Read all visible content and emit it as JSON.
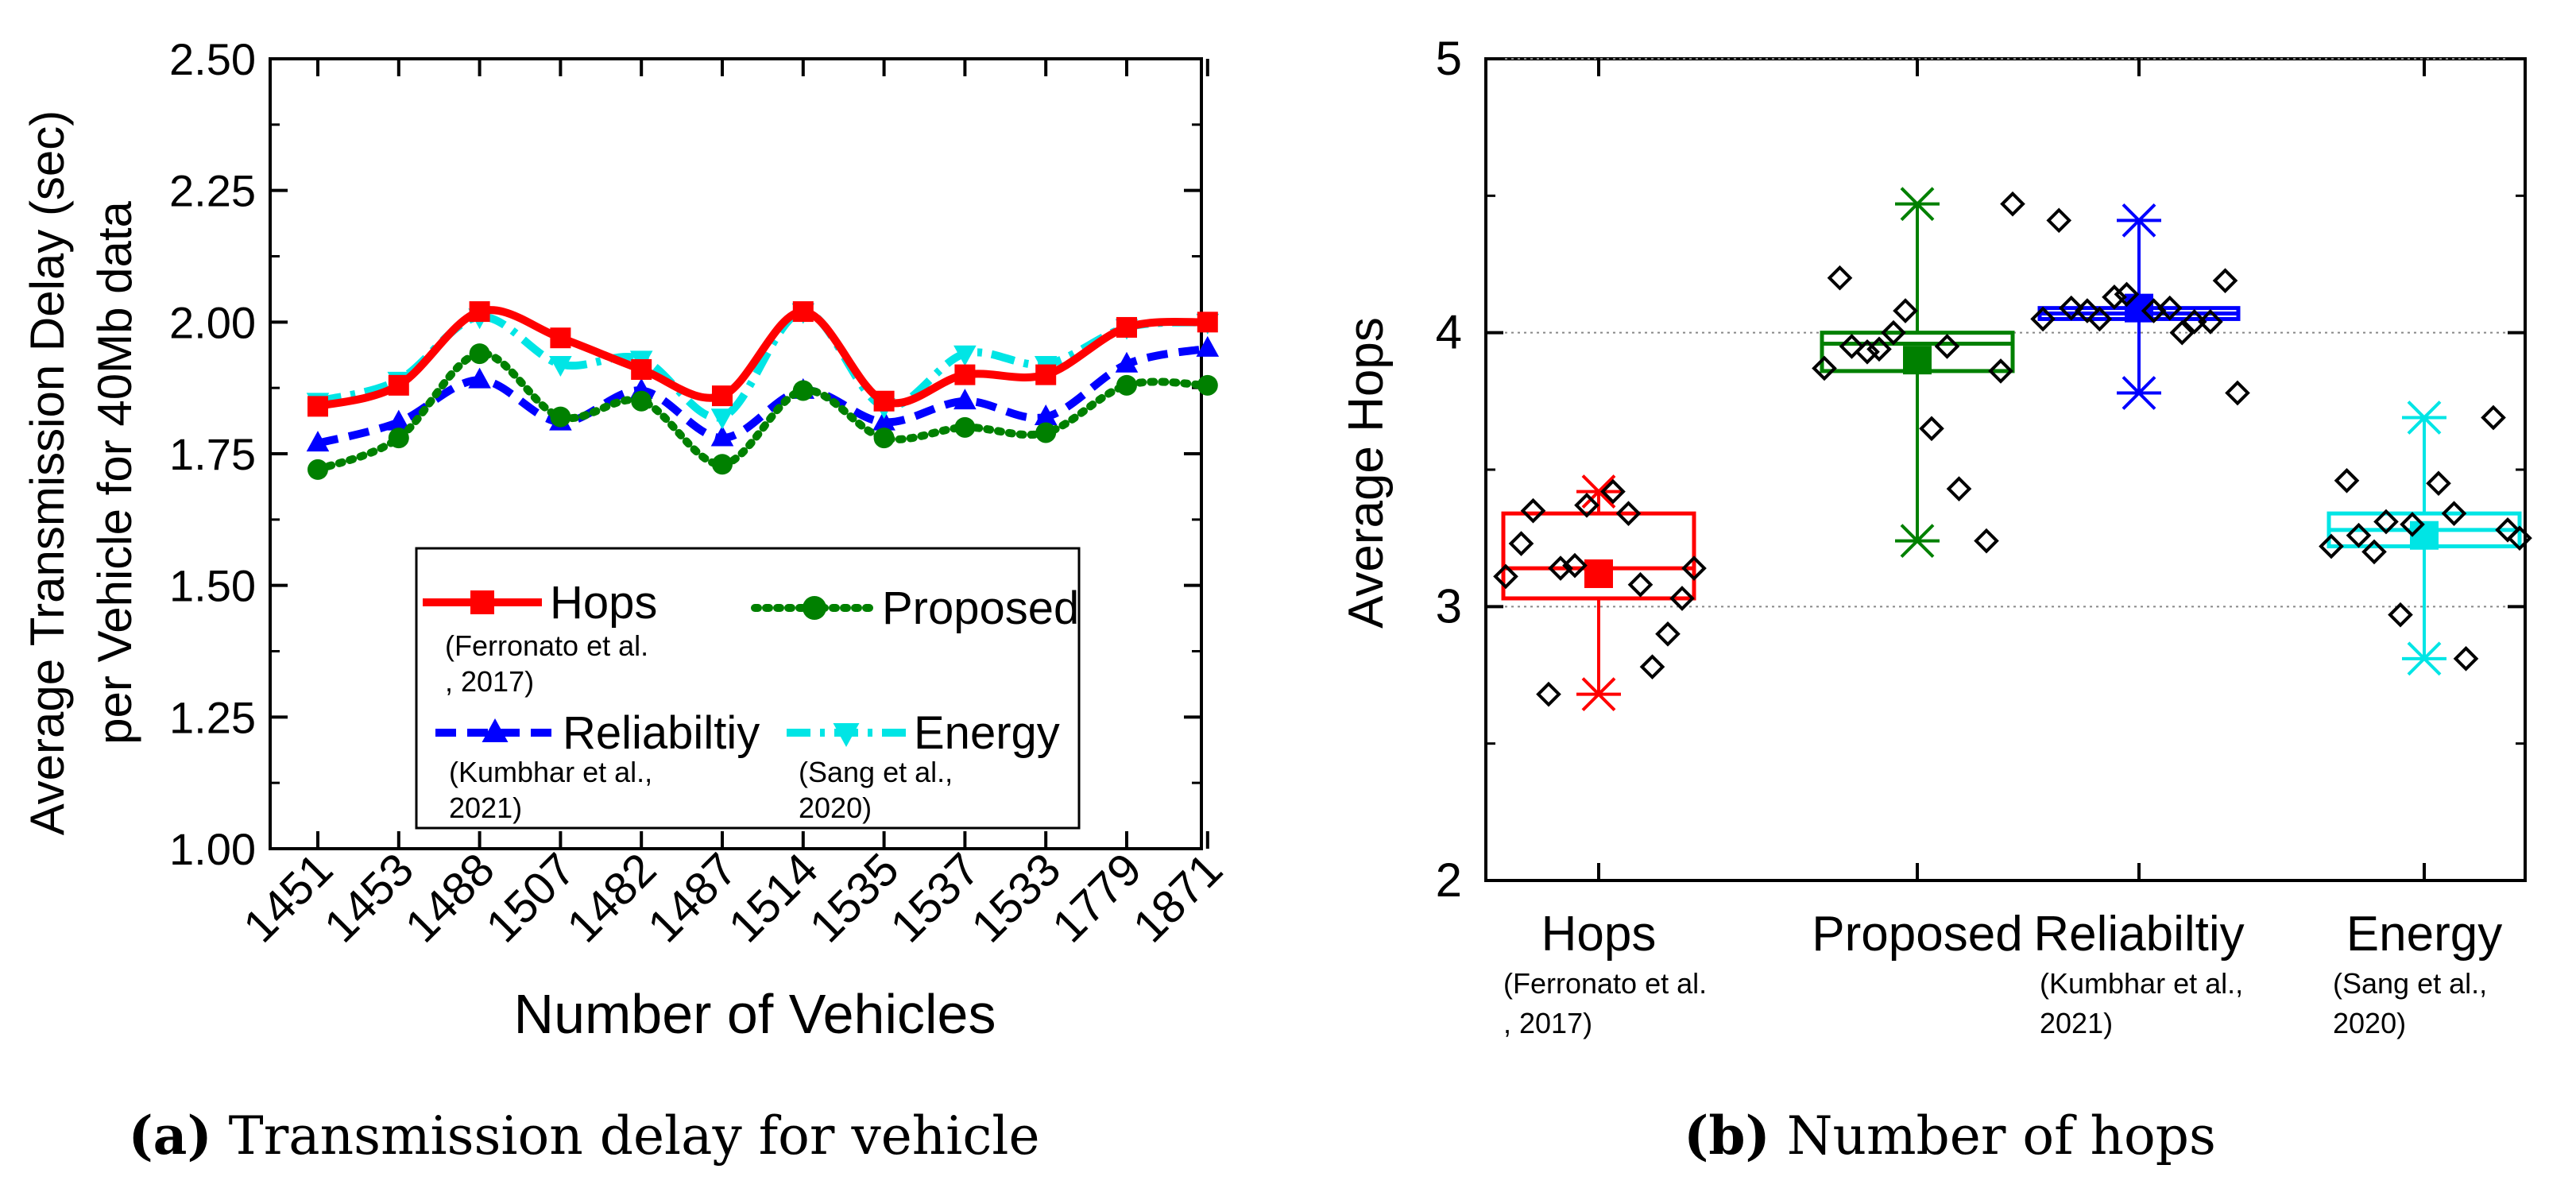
{
  "chart_data": [
    {
      "type": "line",
      "panel": "a",
      "caption_bold": "(a)",
      "caption_text": " Transmission delay for vehicle",
      "xlabel": "Number of Vehicles",
      "ylabel_line1": "Average Transmission Delay (sec)",
      "ylabel_line2": "per Vehicle for 40Mb data",
      "ylim": [
        1.0,
        2.5
      ],
      "yticks": [
        "1.00",
        "1.25",
        "1.50",
        "1.75",
        "2.00",
        "2.25",
        "2.50"
      ],
      "categories": [
        "1451",
        "1453",
        "1488",
        "1507",
        "1482",
        "1487",
        "1514",
        "1535",
        "1537",
        "1533",
        "1779",
        "1871"
      ],
      "series": [
        {
          "name": "Hops",
          "ref_line1": "(Ferronato et al.",
          "ref_line2": ", 2017)",
          "color": "#ff0000",
          "marker": "square",
          "dash": "solid",
          "values": [
            1.84,
            1.88,
            2.02,
            1.97,
            1.91,
            1.86,
            2.02,
            1.85,
            1.9,
            1.9,
            1.99,
            2.0
          ]
        },
        {
          "name": "Proposed",
          "ref_line1": "",
          "ref_line2": "",
          "color": "#008000",
          "marker": "circle",
          "dash": "dot",
          "values": [
            1.72,
            1.78,
            1.94,
            1.82,
            1.85,
            1.73,
            1.87,
            1.78,
            1.8,
            1.79,
            1.88,
            1.88
          ]
        },
        {
          "name": "Reliabiltiy",
          "ref_line1": "(Kumbhar et al.,",
          "ref_line2": "2021)",
          "color": "#0000ff",
          "marker": "triangle-up",
          "dash": "dash",
          "values": [
            1.77,
            1.81,
            1.89,
            1.81,
            1.87,
            1.78,
            1.87,
            1.81,
            1.85,
            1.82,
            1.92,
            1.95
          ]
        },
        {
          "name": "Energy",
          "ref_line1": "(Sang et al.,",
          "ref_line2": "2020)",
          "color": "#00e5e5",
          "marker": "triangle-down",
          "dash": "dashdot",
          "values": [
            1.85,
            1.89,
            2.01,
            1.92,
            1.93,
            1.82,
            2.02,
            1.84,
            1.94,
            1.92,
            1.99,
            2.0
          ]
        }
      ]
    },
    {
      "type": "box",
      "panel": "b",
      "caption_bold": "(b)",
      "caption_text": " Number of hops",
      "ylabel": "Average Hops",
      "ylim": [
        2,
        5
      ],
      "yticks": [
        "2",
        "3",
        "4",
        "5"
      ],
      "grid": true,
      "groups": [
        {
          "name": "Hops",
          "ref_line1": "(Ferronato et al.",
          "ref_line2": ", 2017)",
          "color": "#ff0000",
          "q1": 3.03,
          "median": 3.14,
          "q3": 3.34,
          "mean": 3.12,
          "whisker_low": 2.68,
          "whisker_high": 3.42,
          "min": 2.68,
          "max": 3.42,
          "points": [
            3.11,
            3.35,
            3.14,
            3.37,
            3.42,
            3.08,
            2.9,
            3.14,
            3.23,
            3.15,
            3.34,
            3.03,
            2.68,
            2.78
          ]
        },
        {
          "name": "Proposed",
          "ref_line1": "",
          "ref_line2": "",
          "color": "#008000",
          "q1": 3.86,
          "median": 3.96,
          "q3": 4.0,
          "mean": 3.9,
          "whisker_low": 3.24,
          "whisker_high": 4.47,
          "min": 3.24,
          "max": 4.47,
          "points": [
            3.87,
            3.95,
            3.94,
            4.08,
            3.65,
            3.43,
            3.24,
            4.47,
            4.2,
            4.0,
            3.95,
            3.86,
            3.93
          ]
        },
        {
          "name": "Reliabiltiy",
          "ref_line1": "(Kumbhar et al.,",
          "ref_line2": "2021)",
          "color": "#0000ff",
          "q1": 4.05,
          "median": 4.07,
          "q3": 4.09,
          "mean": 4.09,
          "whisker_low": 3.78,
          "whisker_high": 4.41,
          "min": 3.78,
          "max": 4.41,
          "points": [
            4.05,
            4.09,
            4.05,
            4.14,
            4.08,
            4.0,
            4.04,
            3.78,
            4.41,
            4.13,
            4.09,
            4.19,
            4.08,
            4.04
          ]
        },
        {
          "name": "Energy",
          "ref_line1": "(Sang et al.,",
          "ref_line2": "2020)",
          "color": "#00e5e5",
          "q1": 3.22,
          "median": 3.28,
          "q3": 3.34,
          "mean": 3.26,
          "whisker_low": 2.81,
          "whisker_high": 3.69,
          "min": 2.81,
          "max": 3.69,
          "points": [
            3.22,
            3.26,
            3.31,
            3.3,
            3.45,
            2.81,
            3.69,
            3.25,
            3.46,
            2.97,
            3.34,
            3.28,
            3.2
          ]
        }
      ]
    }
  ]
}
